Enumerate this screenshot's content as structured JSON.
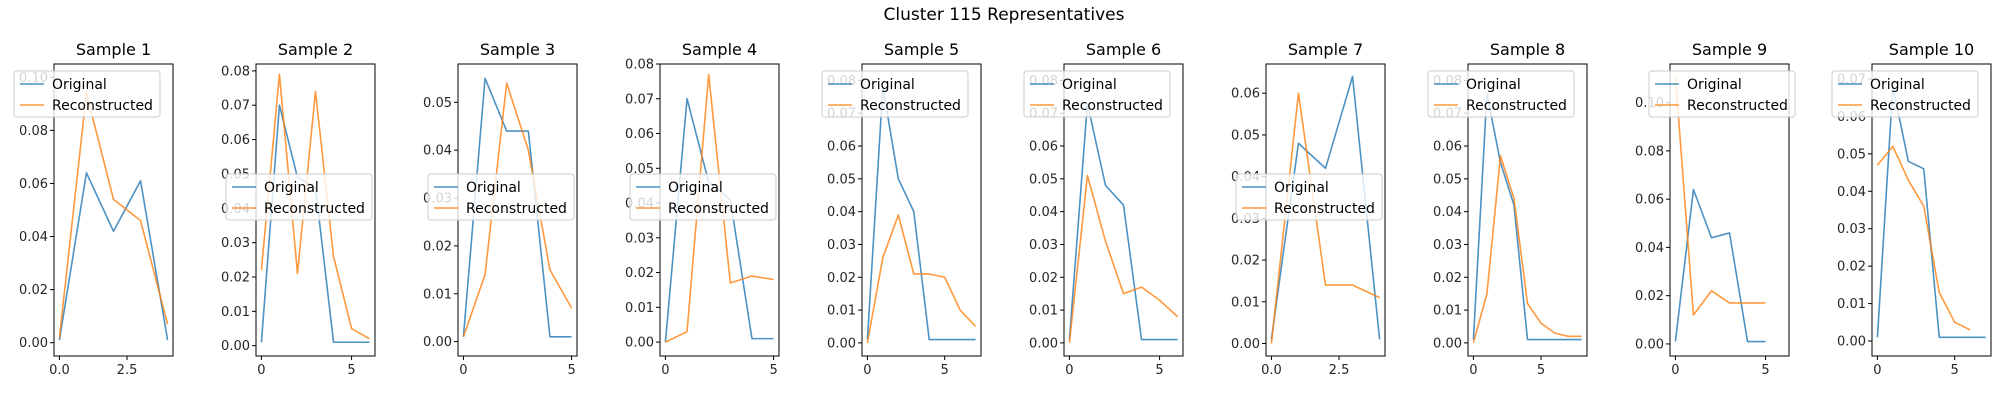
{
  "figure": {
    "title": "Cluster 115 Representatives"
  },
  "colors": {
    "original": "#1f77b4",
    "reconstructed": "#ff7f0e",
    "axes": "#000000",
    "background": "#ffffff"
  },
  "chart_data": [
    {
      "type": "line",
      "title": "Sample 1",
      "x": [
        0,
        1,
        2,
        3,
        4
      ],
      "xlim": [
        -0.2,
        4.2
      ],
      "ylim": [
        -0.005,
        0.105
      ],
      "xticks": [
        0,
        2.5
      ],
      "yticks": [
        0,
        0.02,
        0.04,
        0.06,
        0.08,
        0.1
      ],
      "ytick_labels": [
        "0.00",
        "0.02",
        "0.04",
        "0.06",
        "0.08",
        "0.10"
      ],
      "xtick_labels": [
        "0.0",
        "2.5"
      ],
      "legend": "upper-left",
      "series": [
        {
          "name": "Original",
          "values": [
            0.001,
            0.064,
            0.042,
            0.061,
            0.001
          ]
        },
        {
          "name": "Reconstructed",
          "values": [
            0.002,
            0.094,
            0.054,
            0.046,
            0.007
          ]
        }
      ]
    },
    {
      "type": "line",
      "title": "Sample 2",
      "x": [
        0,
        1,
        2,
        3,
        4,
        5,
        6
      ],
      "xlim": [
        -0.3,
        6.3
      ],
      "ylim": [
        -0.003,
        0.082
      ],
      "xticks": [
        0,
        5
      ],
      "yticks": [
        0,
        0.01,
        0.02,
        0.03,
        0.04,
        0.05,
        0.06,
        0.07,
        0.08
      ],
      "ytick_labels": [
        "0.00",
        "0.01",
        "0.02",
        "0.03",
        "0.04",
        "0.05",
        "0.06",
        "0.07",
        "0.08"
      ],
      "xtick_labels": [
        "0",
        "5"
      ],
      "legend": "center-left",
      "series": [
        {
          "name": "Original",
          "values": [
            0.001,
            0.07,
            0.049,
            0.046,
            0.001,
            0.001,
            0.001
          ]
        },
        {
          "name": "Reconstructed",
          "values": [
            0.022,
            0.079,
            0.021,
            0.074,
            0.026,
            0.005,
            0.002
          ]
        }
      ]
    },
    {
      "type": "line",
      "title": "Sample 3",
      "x": [
        0,
        1,
        2,
        3,
        4,
        5
      ],
      "xlim": [
        -0.25,
        5.25
      ],
      "ylim": [
        -0.003,
        0.058
      ],
      "xticks": [
        0,
        5
      ],
      "yticks": [
        0,
        0.01,
        0.02,
        0.03,
        0.04,
        0.05
      ],
      "ytick_labels": [
        "0.00",
        "0.01",
        "0.02",
        "0.03",
        "0.04",
        "0.05"
      ],
      "xtick_labels": [
        "0",
        "5"
      ],
      "legend": "center-left",
      "series": [
        {
          "name": "Original",
          "values": [
            0.001,
            0.055,
            0.044,
            0.044,
            0.001,
            0.001
          ]
        },
        {
          "name": "Reconstructed",
          "values": [
            0.001,
            0.014,
            0.054,
            0.04,
            0.015,
            0.007
          ]
        }
      ]
    },
    {
      "type": "line",
      "title": "Sample 4",
      "x": [
        0,
        1,
        2,
        3,
        4,
        5
      ],
      "xlim": [
        -0.25,
        5.25
      ],
      "ylim": [
        -0.004,
        0.08
      ],
      "xticks": [
        0,
        5
      ],
      "yticks": [
        0,
        0.01,
        0.02,
        0.03,
        0.04,
        0.05,
        0.06,
        0.07,
        0.08
      ],
      "ytick_labels": [
        "0.00",
        "0.01",
        "0.02",
        "0.03",
        "0.04",
        "0.05",
        "0.06",
        "0.07",
        "0.08"
      ],
      "xtick_labels": [
        "0",
        "5"
      ],
      "legend": "center-left",
      "series": [
        {
          "name": "Original",
          "values": [
            0.0,
            0.07,
            0.046,
            0.041,
            0.001,
            0.001
          ]
        },
        {
          "name": "Reconstructed",
          "values": [
            0.0,
            0.003,
            0.077,
            0.017,
            0.019,
            0.018
          ]
        }
      ]
    },
    {
      "type": "line",
      "title": "Sample 5",
      "x": [
        0,
        1,
        2,
        3,
        4,
        5,
        6,
        7
      ],
      "xlim": [
        -0.35,
        7.35
      ],
      "ylim": [
        -0.004,
        0.085
      ],
      "xticks": [
        0,
        5
      ],
      "yticks": [
        0,
        0.01,
        0.02,
        0.03,
        0.04,
        0.05,
        0.06,
        0.07,
        0.08
      ],
      "ytick_labels": [
        "0.00",
        "0.01",
        "0.02",
        "0.03",
        "0.04",
        "0.05",
        "0.06",
        "0.07",
        "0.08"
      ],
      "xtick_labels": [
        "0",
        "5"
      ],
      "legend": "upper-left",
      "series": [
        {
          "name": "Original",
          "values": [
            0.001,
            0.078,
            0.05,
            0.04,
            0.001,
            0.001,
            0.001,
            0.001
          ]
        },
        {
          "name": "Reconstructed",
          "values": [
            0.0,
            0.026,
            0.039,
            0.021,
            0.021,
            0.02,
            0.01,
            0.005
          ]
        }
      ]
    },
    {
      "type": "line",
      "title": "Sample 6",
      "x": [
        0,
        1,
        2,
        3,
        4,
        5,
        6
      ],
      "xlim": [
        -0.3,
        6.3
      ],
      "ylim": [
        -0.004,
        0.085
      ],
      "xticks": [
        0,
        5
      ],
      "yticks": [
        0,
        0.01,
        0.02,
        0.03,
        0.04,
        0.05,
        0.06,
        0.07,
        0.08
      ],
      "ytick_labels": [
        "0.00",
        "0.01",
        "0.02",
        "0.03",
        "0.04",
        "0.05",
        "0.06",
        "0.07",
        "0.08"
      ],
      "xtick_labels": [
        "0",
        "5"
      ],
      "legend": "upper-left",
      "series": [
        {
          "name": "Original",
          "values": [
            0.001,
            0.073,
            0.048,
            0.042,
            0.001,
            0.001,
            0.001
          ]
        },
        {
          "name": "Reconstructed",
          "values": [
            0.0,
            0.051,
            0.031,
            0.015,
            0.017,
            0.013,
            0.008
          ]
        }
      ]
    },
    {
      "type": "line",
      "title": "Sample 7",
      "x": [
        0,
        1,
        2,
        3,
        4
      ],
      "xlim": [
        -0.2,
        4.2
      ],
      "ylim": [
        -0.003,
        0.067
      ],
      "xticks": [
        0,
        2.5
      ],
      "yticks": [
        0,
        0.01,
        0.02,
        0.03,
        0.04,
        0.05,
        0.06
      ],
      "ytick_labels": [
        "0.00",
        "0.01",
        "0.02",
        "0.03",
        "0.04",
        "0.05",
        "0.06"
      ],
      "xtick_labels": [
        "0.0",
        "2.5"
      ],
      "legend": "center-left",
      "series": [
        {
          "name": "Original",
          "values": [
            0.001,
            0.048,
            0.042,
            0.064,
            0.001
          ]
        },
        {
          "name": "Reconstructed",
          "values": [
            0.0,
            0.06,
            0.014,
            0.014,
            0.011
          ]
        }
      ]
    },
    {
      "type": "line",
      "title": "Sample 8",
      "x": [
        0,
        1,
        2,
        3,
        4,
        5,
        6,
        7,
        8
      ],
      "xlim": [
        -0.4,
        8.4
      ],
      "ylim": [
        -0.004,
        0.085
      ],
      "xticks": [
        0,
        5
      ],
      "yticks": [
        0,
        0.01,
        0.02,
        0.03,
        0.04,
        0.05,
        0.06,
        0.07,
        0.08
      ],
      "ytick_labels": [
        "0.00",
        "0.01",
        "0.02",
        "0.03",
        "0.04",
        "0.05",
        "0.06",
        "0.07",
        "0.08"
      ],
      "xtick_labels": [
        "0",
        "5"
      ],
      "legend": "upper-left",
      "series": [
        {
          "name": "Original",
          "values": [
            0.001,
            0.076,
            0.055,
            0.042,
            0.001,
            0.001,
            0.001,
            0.001,
            0.001
          ]
        },
        {
          "name": "Reconstructed",
          "values": [
            0.0,
            0.015,
            0.057,
            0.044,
            0.012,
            0.006,
            0.003,
            0.002,
            0.002
          ]
        }
      ]
    },
    {
      "type": "line",
      "title": "Sample 9",
      "x": [
        0,
        1,
        2,
        3,
        4,
        5,
        6
      ],
      "xlim": [
        -0.3,
        6.3
      ],
      "ylim": [
        -0.005,
        0.116
      ],
      "xticks": [
        0,
        5
      ],
      "yticks": [
        0,
        0.02,
        0.04,
        0.06,
        0.08,
        0.1
      ],
      "ytick_labels": [
        "0.00",
        "0.02",
        "0.04",
        "0.06",
        "0.08",
        "0.10"
      ],
      "xtick_labels": [
        "0",
        "5"
      ],
      "legend": "upper-right",
      "series": [
        {
          "name": "Original",
          "values": [
            0.001,
            0.064,
            0.044,
            0.046,
            0.001,
            0.001,
            null
          ]
        },
        {
          "name": "Reconstructed",
          "values": [
            0.111,
            0.012,
            0.022,
            0.017,
            0.017,
            0.017,
            null
          ]
        }
      ]
    },
    {
      "type": "line",
      "title": "Sample 10",
      "x": [
        0,
        1,
        2,
        3,
        4,
        5,
        6,
        7
      ],
      "xlim": [
        -0.35,
        7.35
      ],
      "ylim": [
        -0.004,
        0.074
      ],
      "xticks": [
        0,
        5
      ],
      "yticks": [
        0,
        0.01,
        0.02,
        0.03,
        0.04,
        0.05,
        0.06,
        0.07
      ],
      "ytick_labels": [
        "0.00",
        "0.01",
        "0.02",
        "0.03",
        "0.04",
        "0.05",
        "0.06",
        "0.07"
      ],
      "xtick_labels": [
        "0",
        "5"
      ],
      "legend": "upper-left",
      "series": [
        {
          "name": "Original",
          "values": [
            0.001,
            0.068,
            0.048,
            0.046,
            0.001,
            0.001,
            0.001,
            0.001
          ]
        },
        {
          "name": "Reconstructed",
          "values": [
            0.047,
            0.052,
            0.043,
            0.036,
            0.013,
            0.005,
            0.003,
            null
          ]
        }
      ]
    }
  ]
}
